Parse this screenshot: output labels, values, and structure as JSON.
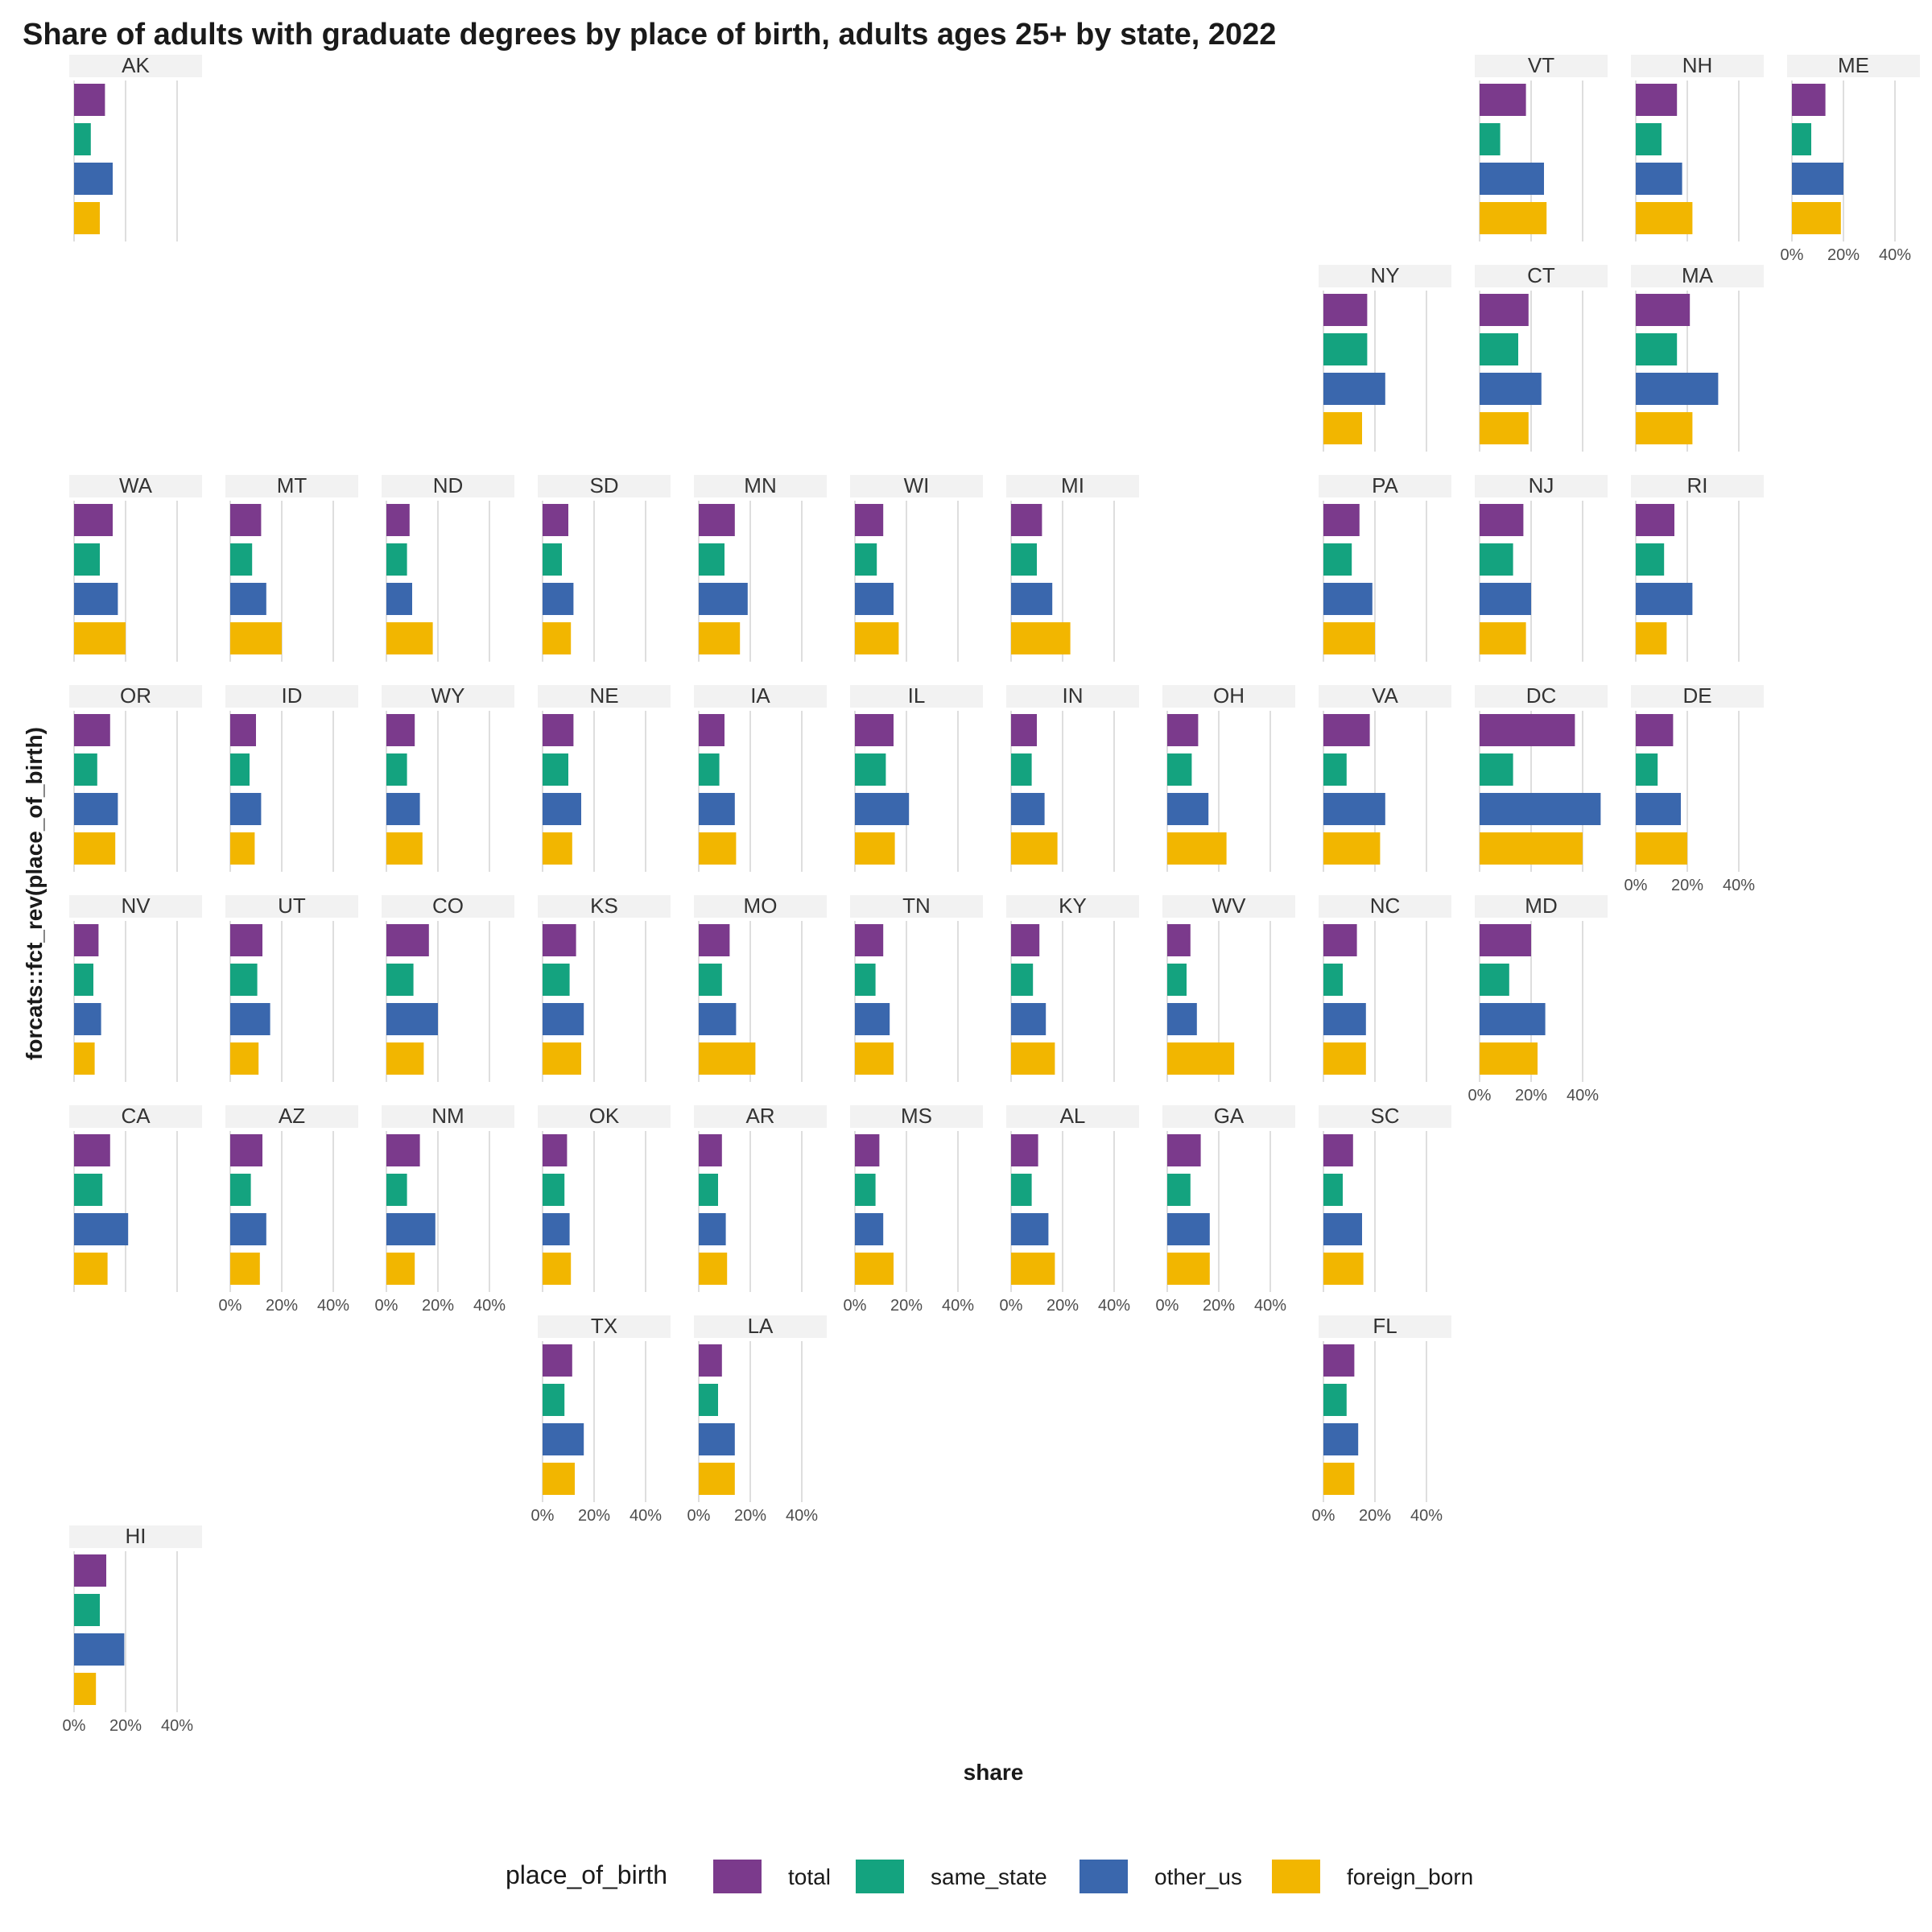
{
  "chart_data": {
    "type": "bar",
    "title": "Share of adults with graduate degrees by place of birth, adults ages 25+ by state, 2022",
    "xlabel": "share",
    "ylabel": "forcats::fct_rev(place_of_birth)",
    "xlim": [
      0,
      0.5
    ],
    "x_ticks": [
      0,
      0.2,
      0.4
    ],
    "x_tick_labels": [
      "0%",
      "20%",
      "40%"
    ],
    "grid": true,
    "legend": {
      "title": "place_of_birth",
      "position": "bottom",
      "entries": [
        "total",
        "same_state",
        "other_us",
        "foreign_born"
      ]
    },
    "series": [
      {
        "name": "total",
        "color": "#7B3A8C"
      },
      {
        "name": "same_state",
        "color": "#14A37F"
      },
      {
        "name": "other_us",
        "color": "#3A67AD"
      },
      {
        "name": "foreign_born",
        "color": "#F2B600"
      }
    ],
    "panels": [
      {
        "state": "AK",
        "row": 0,
        "col": 0,
        "values": [
          0.12,
          0.065,
          0.15,
          0.1
        ],
        "x_axis_labels": false
      },
      {
        "state": "VT",
        "row": 0,
        "col": 9,
        "values": [
          0.18,
          0.08,
          0.25,
          0.26
        ],
        "x_axis_labels": false
      },
      {
        "state": "NH",
        "row": 0,
        "col": 10,
        "values": [
          0.16,
          0.1,
          0.18,
          0.22
        ],
        "x_axis_labels": false
      },
      {
        "state": "ME",
        "row": 0,
        "col": 11,
        "values": [
          0.13,
          0.075,
          0.2,
          0.19
        ],
        "x_axis_labels": true
      },
      {
        "state": "NY",
        "row": 1,
        "col": 8,
        "values": [
          0.17,
          0.17,
          0.24,
          0.15
        ],
        "x_axis_labels": false
      },
      {
        "state": "CT",
        "row": 1,
        "col": 9,
        "values": [
          0.19,
          0.15,
          0.24,
          0.19
        ],
        "x_axis_labels": false
      },
      {
        "state": "MA",
        "row": 1,
        "col": 10,
        "values": [
          0.21,
          0.16,
          0.32,
          0.22
        ],
        "x_axis_labels": false
      },
      {
        "state": "WA",
        "row": 2,
        "col": 0,
        "values": [
          0.15,
          0.1,
          0.17,
          0.2
        ],
        "x_axis_labels": false
      },
      {
        "state": "MT",
        "row": 2,
        "col": 1,
        "values": [
          0.12,
          0.085,
          0.14,
          0.2
        ],
        "x_axis_labels": false
      },
      {
        "state": "ND",
        "row": 2,
        "col": 2,
        "values": [
          0.09,
          0.08,
          0.1,
          0.18
        ],
        "x_axis_labels": false
      },
      {
        "state": "SD",
        "row": 2,
        "col": 3,
        "values": [
          0.1,
          0.075,
          0.12,
          0.11
        ],
        "x_axis_labels": false
      },
      {
        "state": "MN",
        "row": 2,
        "col": 4,
        "values": [
          0.14,
          0.1,
          0.19,
          0.16
        ],
        "x_axis_labels": false
      },
      {
        "state": "WI",
        "row": 2,
        "col": 5,
        "values": [
          0.11,
          0.085,
          0.15,
          0.17
        ],
        "x_axis_labels": false
      },
      {
        "state": "MI",
        "row": 2,
        "col": 6,
        "values": [
          0.12,
          0.1,
          0.16,
          0.23
        ],
        "x_axis_labels": false
      },
      {
        "state": "PA",
        "row": 2,
        "col": 8,
        "values": [
          0.14,
          0.11,
          0.19,
          0.2
        ],
        "x_axis_labels": false
      },
      {
        "state": "NJ",
        "row": 2,
        "col": 9,
        "values": [
          0.17,
          0.13,
          0.2,
          0.18
        ],
        "x_axis_labels": false
      },
      {
        "state": "RI",
        "row": 2,
        "col": 10,
        "values": [
          0.15,
          0.11,
          0.22,
          0.12
        ],
        "x_axis_labels": false
      },
      {
        "state": "OR",
        "row": 3,
        "col": 0,
        "values": [
          0.14,
          0.09,
          0.17,
          0.16
        ],
        "x_axis_labels": false
      },
      {
        "state": "ID",
        "row": 3,
        "col": 1,
        "values": [
          0.1,
          0.075,
          0.12,
          0.095
        ],
        "x_axis_labels": false
      },
      {
        "state": "WY",
        "row": 3,
        "col": 2,
        "values": [
          0.11,
          0.08,
          0.13,
          0.14
        ],
        "x_axis_labels": false
      },
      {
        "state": "NE",
        "row": 3,
        "col": 3,
        "values": [
          0.12,
          0.1,
          0.15,
          0.115
        ],
        "x_axis_labels": false
      },
      {
        "state": "IA",
        "row": 3,
        "col": 4,
        "values": [
          0.1,
          0.08,
          0.14,
          0.145
        ],
        "x_axis_labels": false
      },
      {
        "state": "IL",
        "row": 3,
        "col": 5,
        "values": [
          0.15,
          0.12,
          0.21,
          0.155
        ],
        "x_axis_labels": false
      },
      {
        "state": "IN",
        "row": 3,
        "col": 6,
        "values": [
          0.1,
          0.08,
          0.13,
          0.18
        ],
        "x_axis_labels": false
      },
      {
        "state": "OH",
        "row": 3,
        "col": 7,
        "values": [
          0.12,
          0.095,
          0.16,
          0.23
        ],
        "x_axis_labels": false
      },
      {
        "state": "VA",
        "row": 3,
        "col": 8,
        "values": [
          0.18,
          0.09,
          0.24,
          0.22
        ],
        "x_axis_labels": false
      },
      {
        "state": "DC",
        "row": 3,
        "col": 9,
        "values": [
          0.37,
          0.13,
          0.47,
          0.4
        ],
        "x_axis_labels": false
      },
      {
        "state": "DE",
        "row": 3,
        "col": 10,
        "values": [
          0.145,
          0.085,
          0.175,
          0.2
        ],
        "x_axis_labels": true
      },
      {
        "state": "NV",
        "row": 4,
        "col": 0,
        "values": [
          0.095,
          0.075,
          0.105,
          0.08
        ],
        "x_axis_labels": false
      },
      {
        "state": "UT",
        "row": 4,
        "col": 1,
        "values": [
          0.125,
          0.105,
          0.155,
          0.11
        ],
        "x_axis_labels": false
      },
      {
        "state": "CO",
        "row": 4,
        "col": 2,
        "values": [
          0.165,
          0.105,
          0.2,
          0.145
        ],
        "x_axis_labels": false
      },
      {
        "state": "KS",
        "row": 4,
        "col": 3,
        "values": [
          0.13,
          0.105,
          0.16,
          0.15
        ],
        "x_axis_labels": false
      },
      {
        "state": "MO",
        "row": 4,
        "col": 4,
        "values": [
          0.12,
          0.09,
          0.145,
          0.22
        ],
        "x_axis_labels": false
      },
      {
        "state": "TN",
        "row": 4,
        "col": 5,
        "values": [
          0.11,
          0.08,
          0.135,
          0.15
        ],
        "x_axis_labels": false
      },
      {
        "state": "KY",
        "row": 4,
        "col": 6,
        "values": [
          0.11,
          0.085,
          0.135,
          0.17
        ],
        "x_axis_labels": false
      },
      {
        "state": "WV",
        "row": 4,
        "col": 7,
        "values": [
          0.09,
          0.075,
          0.115,
          0.26
        ],
        "x_axis_labels": false
      },
      {
        "state": "NC",
        "row": 4,
        "col": 8,
        "values": [
          0.13,
          0.075,
          0.165,
          0.165
        ],
        "x_axis_labels": false
      },
      {
        "state": "MD",
        "row": 4,
        "col": 9,
        "values": [
          0.2,
          0.115,
          0.255,
          0.225
        ],
        "x_axis_labels": true
      },
      {
        "state": "CA",
        "row": 5,
        "col": 0,
        "values": [
          0.14,
          0.11,
          0.21,
          0.13
        ],
        "x_axis_labels": false
      },
      {
        "state": "AZ",
        "row": 5,
        "col": 1,
        "values": [
          0.125,
          0.08,
          0.14,
          0.115
        ],
        "x_axis_labels": true
      },
      {
        "state": "NM",
        "row": 5,
        "col": 2,
        "values": [
          0.13,
          0.08,
          0.19,
          0.11
        ],
        "x_axis_labels": true
      },
      {
        "state": "OK",
        "row": 5,
        "col": 3,
        "values": [
          0.095,
          0.085,
          0.105,
          0.11
        ],
        "x_axis_labels": false
      },
      {
        "state": "AR",
        "row": 5,
        "col": 4,
        "values": [
          0.09,
          0.075,
          0.105,
          0.11
        ],
        "x_axis_labels": false
      },
      {
        "state": "MS",
        "row": 5,
        "col": 5,
        "values": [
          0.095,
          0.08,
          0.11,
          0.15
        ],
        "x_axis_labels": true
      },
      {
        "state": "AL",
        "row": 5,
        "col": 6,
        "values": [
          0.105,
          0.08,
          0.145,
          0.17
        ],
        "x_axis_labels": true
      },
      {
        "state": "GA",
        "row": 5,
        "col": 7,
        "values": [
          0.13,
          0.09,
          0.165,
          0.165
        ],
        "x_axis_labels": true
      },
      {
        "state": "SC",
        "row": 5,
        "col": 8,
        "values": [
          0.115,
          0.075,
          0.15,
          0.155
        ],
        "x_axis_labels": false
      },
      {
        "state": "TX",
        "row": 6,
        "col": 3,
        "values": [
          0.115,
          0.085,
          0.16,
          0.125
        ],
        "x_axis_labels": true
      },
      {
        "state": "LA",
        "row": 6,
        "col": 4,
        "values": [
          0.09,
          0.075,
          0.14,
          0.14
        ],
        "x_axis_labels": true
      },
      {
        "state": "FL",
        "row": 6,
        "col": 8,
        "values": [
          0.12,
          0.09,
          0.135,
          0.12
        ],
        "x_axis_labels": true
      },
      {
        "state": "HI",
        "row": 7,
        "col": 0,
        "values": [
          0.125,
          0.1,
          0.195,
          0.085
        ],
        "x_axis_labels": true
      }
    ]
  }
}
